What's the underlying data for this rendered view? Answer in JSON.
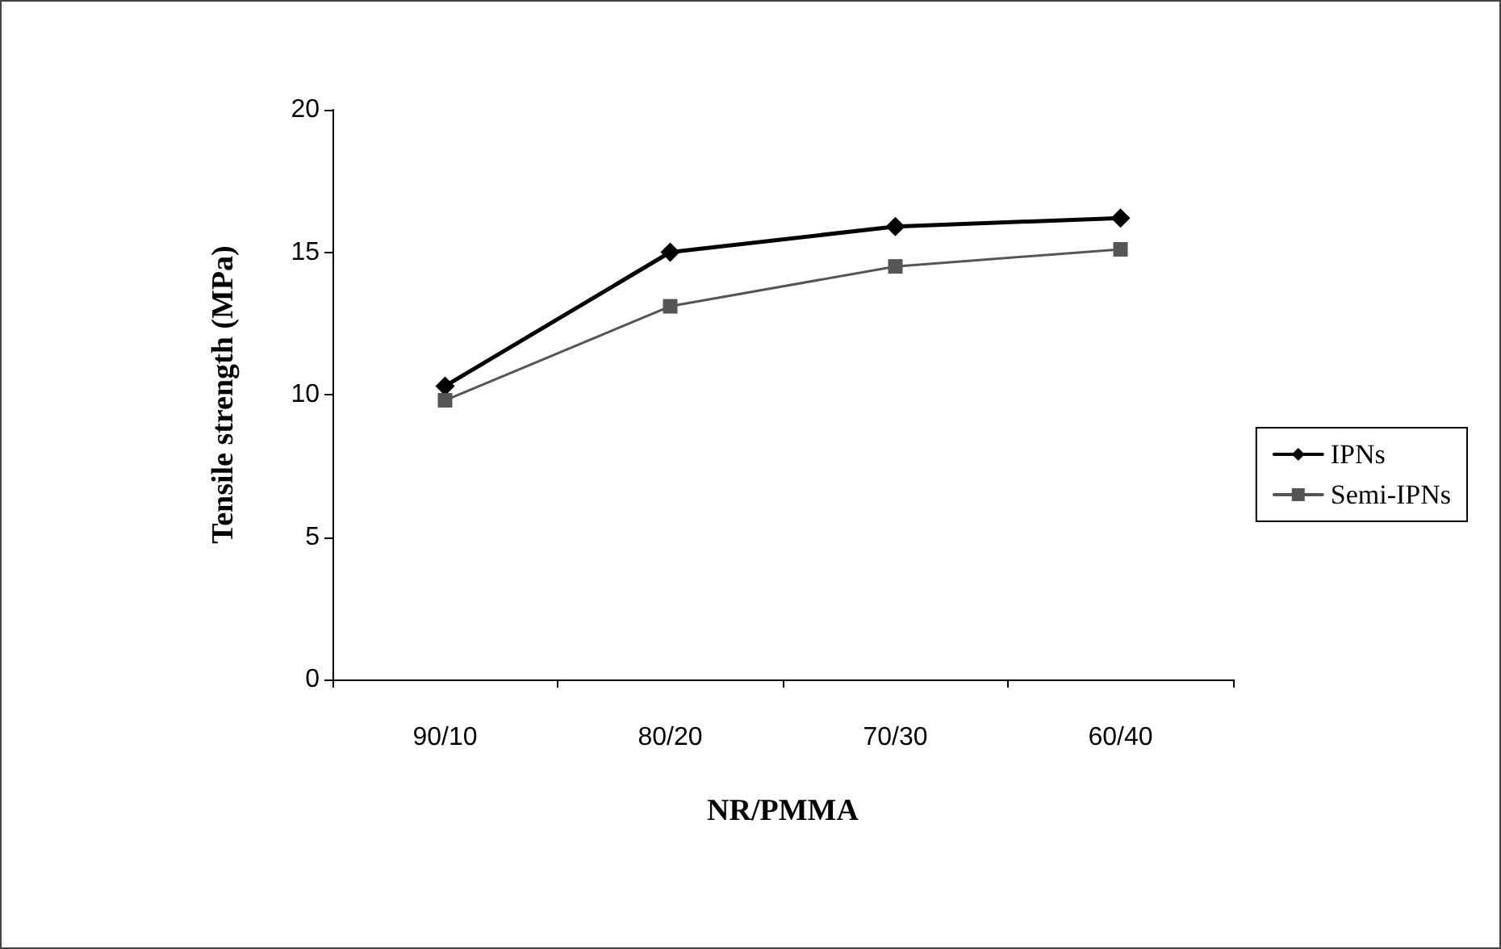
{
  "chart_data": {
    "type": "line",
    "xlabel": "NR/PMMA",
    "ylabel": "Tensile strength (MPa)",
    "categories": [
      "90/10",
      "80/20",
      "70/30",
      "60/40"
    ],
    "series": [
      {
        "name": "IPNs",
        "color": "#000000",
        "marker": "diamond",
        "values": [
          10.3,
          15.0,
          15.9,
          16.2
        ]
      },
      {
        "name": "Semi-IPNs",
        "color": "#555555",
        "marker": "square",
        "values": [
          9.8,
          13.1,
          14.5,
          15.1
        ]
      }
    ],
    "ylim": [
      0,
      20
    ],
    "yticks": [
      0,
      5,
      10,
      15,
      20
    ],
    "grid": false,
    "legend": "right"
  }
}
